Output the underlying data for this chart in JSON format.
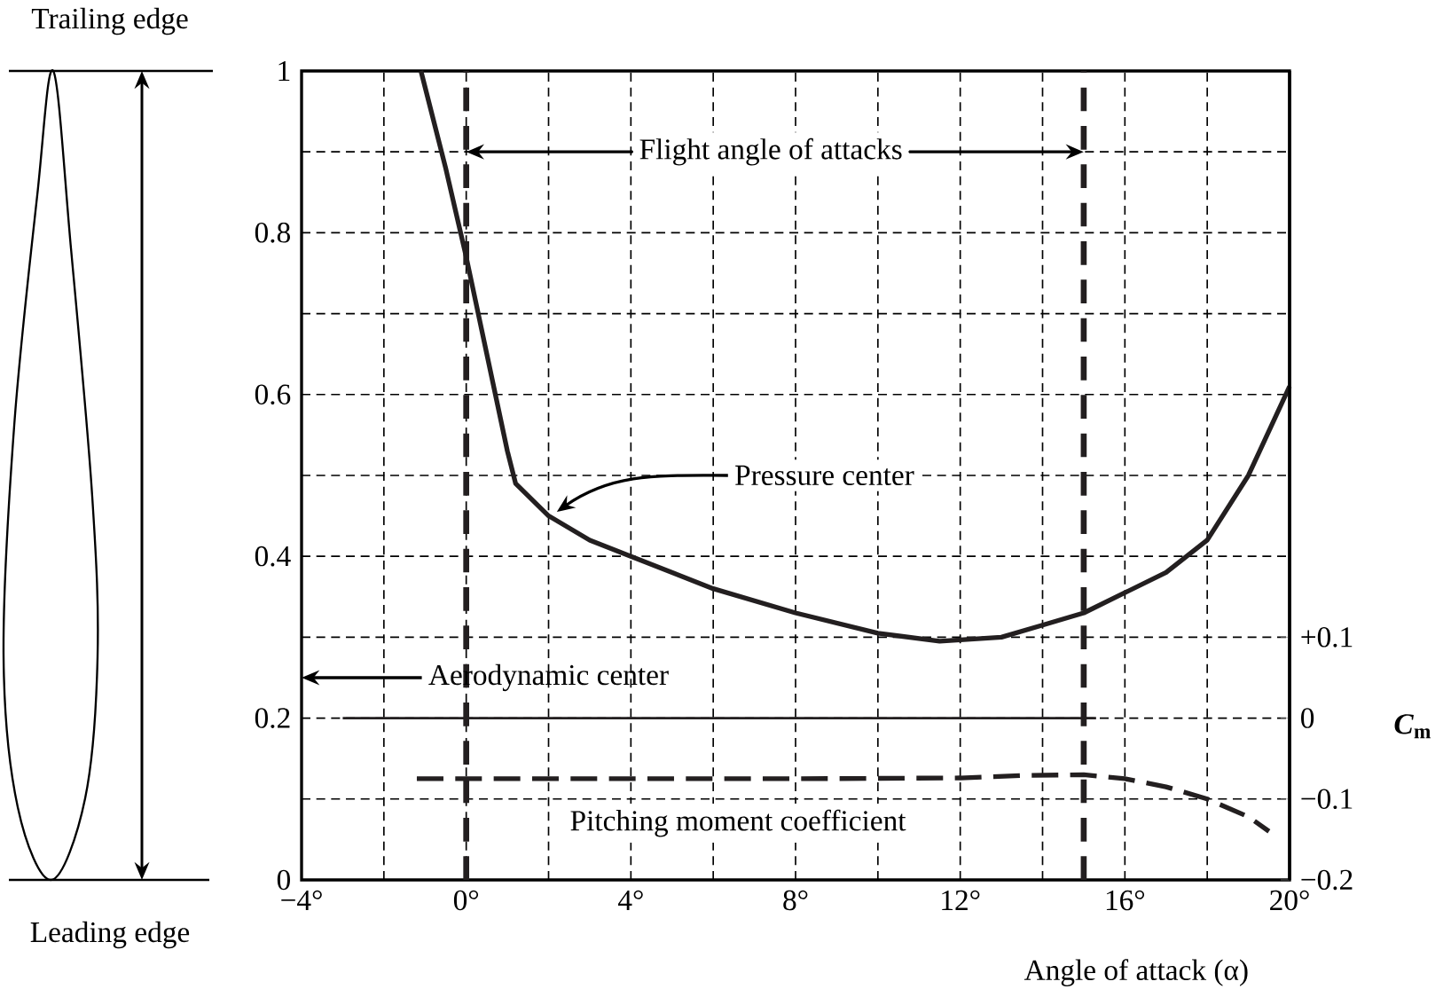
{
  "chart_data": {
    "type": "line",
    "xlabel": "Angle of attack (α)",
    "y2label": "*C*$_{m}$",
    "xlim": [
      -4,
      20
    ],
    "ylim": [
      0,
      1
    ],
    "y2lim": [
      -0.2,
      0.8
    ],
    "xticks": [
      {
        "value": -4,
        "label": "−4°"
      },
      {
        "value": -2,
        "label": null
      },
      {
        "value": 0,
        "label": "0°"
      },
      {
        "value": 2,
        "label": null
      },
      {
        "value": 4,
        "label": "4°"
      },
      {
        "value": 6,
        "label": null
      },
      {
        "value": 8,
        "label": "8°"
      },
      {
        "value": 10,
        "label": null
      },
      {
        "value": 12,
        "label": "12°"
      },
      {
        "value": 14,
        "label": null
      },
      {
        "value": 16,
        "label": "16°"
      },
      {
        "value": 18,
        "label": null
      },
      {
        "value": 20,
        "label": "20°"
      }
    ],
    "yticks": [
      0,
      {
        "value": 0.1,
        "label": null
      },
      0.2,
      {
        "value": 0.3,
        "label": null
      },
      0.4,
      {
        "value": 0.5,
        "label": null
      },
      0.6,
      {
        "value": 0.7,
        "label": null
      },
      0.8,
      {
        "value": 0.9,
        "label": null
      },
      1
    ],
    "y2ticks": [
      {
        "value": -0.2,
        "label": "−0.2"
      },
      {
        "value": -0.1,
        "label": "−0.1"
      },
      0,
      {
        "value": 0.1,
        "label": "+0.1"
      }
    ],
    "grid": true,
    "series": [
      {
        "color": "#231f20",
        "x": [
          -1.1,
          -0.5,
          0,
          0.5,
          1,
          1.2,
          1.6,
          2,
          3,
          4,
          6,
          8,
          10,
          11.5,
          13,
          14,
          15,
          16,
          17,
          18,
          19,
          20
        ],
        "values": [
          1.0,
          0.88,
          0.77,
          0.65,
          0.53,
          0.49,
          0.47,
          0.45,
          0.42,
          0.4,
          0.36,
          0.33,
          0.305,
          0.295,
          0.3,
          0.315,
          0.33,
          0.355,
          0.38,
          0.42,
          0.5,
          0.61
        ]
      },
      {
        "color": "#231f20",
        "x": [
          -3,
          15.3
        ],
        "values": [
          0.2,
          0.2
        ]
      },
      {
        "color": "#231f20",
        "axis": "y2",
        "line_style": "dashed",
        "x": [
          -1.2,
          4,
          8,
          12,
          13.5,
          15,
          16,
          17,
          18,
          19,
          19.5
        ],
        "values": [
          -0.075,
          -0.075,
          -0.075,
          -0.074,
          -0.071,
          -0.07,
          -0.075,
          -0.085,
          -0.1,
          -0.122,
          -0.14
        ]
      }
    ],
    "ref_lines": [
      {
        "axis": "x",
        "value": 0,
        "line_style": "dashed",
        "color": "#231f20"
      },
      {
        "axis": "x",
        "value": 15,
        "line_style": "dashed",
        "color": "#231f20"
      }
    ],
    "annotations": [
      "Flight angle of attacks",
      "Pressure center",
      "Aerodynamic center",
      "Pitching moment coefficient",
      "Trailing edge",
      "Leading edge"
    ]
  }
}
